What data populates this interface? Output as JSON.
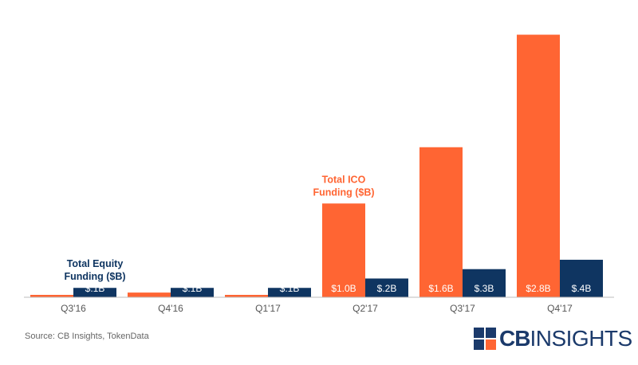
{
  "chart_data": {
    "type": "bar",
    "categories": [
      "Q3'16",
      "Q4'16",
      "Q1'17",
      "Q2'17",
      "Q3'17",
      "Q4'17"
    ],
    "series": [
      {
        "name": "Total ICO Funding ($B)",
        "color": "#ff6533",
        "values": [
          0.02,
          0.05,
          0.02,
          1.0,
          1.6,
          2.8
        ],
        "labels": [
          "",
          "",
          "",
          "$1.0B",
          "$1.6B",
          "$2.8B"
        ]
      },
      {
        "name": "Total Equity Funding ($B)",
        "color": "#0f3561",
        "values": [
          0.1,
          0.1,
          0.1,
          0.2,
          0.3,
          0.4
        ],
        "labels": [
          "$.1B",
          "$.1B",
          "$.1B",
          "$.2B",
          "$.3B",
          "$.4B"
        ]
      }
    ],
    "annotations": [
      {
        "lines": [
          "Total Equity",
          "Funding ($B)"
        ],
        "series": "Total Equity Funding ($B)",
        "category": "Q3'16"
      },
      {
        "lines": [
          "Total ICO",
          "Funding ($B)"
        ],
        "series": "Total ICO Funding ($B)",
        "category": "Q2'17"
      }
    ],
    "ylim": [
      0,
      3.0
    ],
    "grid": false,
    "legend": "none"
  },
  "footer": {
    "source": "Source: CB Insights, TokenData",
    "logo_cb": "CB",
    "logo_insights": "INSIGHTS",
    "logo_icon": "cb-insights-logo-mark-icon"
  }
}
